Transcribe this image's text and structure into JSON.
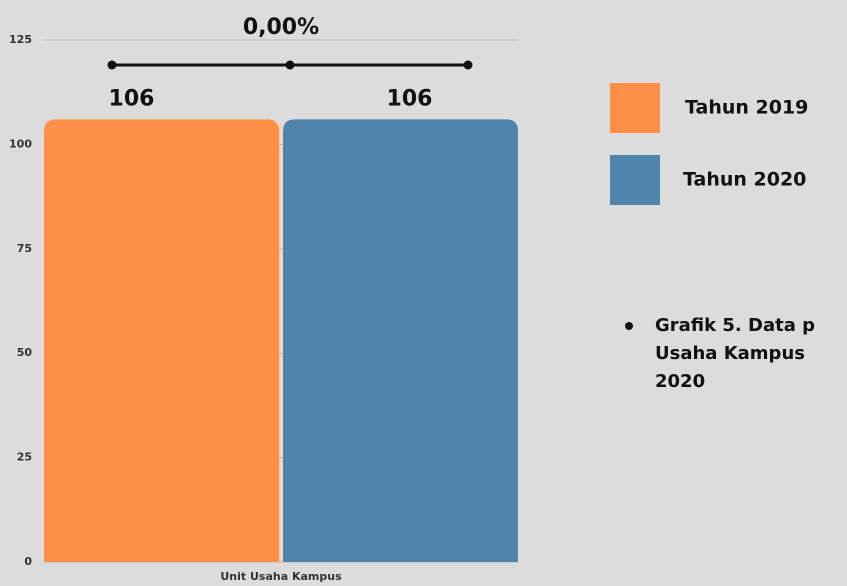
{
  "chart_data": {
    "type": "bar",
    "annotation": "0,00%",
    "categories": [
      "Unit Usaha Kampus"
    ],
    "series": [
      {
        "name": "Tahun 2019",
        "color": "#ff8f47",
        "values": [
          106
        ]
      },
      {
        "name": "Tahun 2020",
        "color": "#4f84ad",
        "values": [
          106
        ]
      }
    ],
    "ylim": [
      0,
      125
    ],
    "yticks": [
      0,
      25,
      50,
      75,
      100,
      125
    ],
    "grid": true,
    "legend": "right",
    "caption": [
      "Grafik 5. Data p",
      "Usaha Kampus",
      "2020"
    ]
  }
}
